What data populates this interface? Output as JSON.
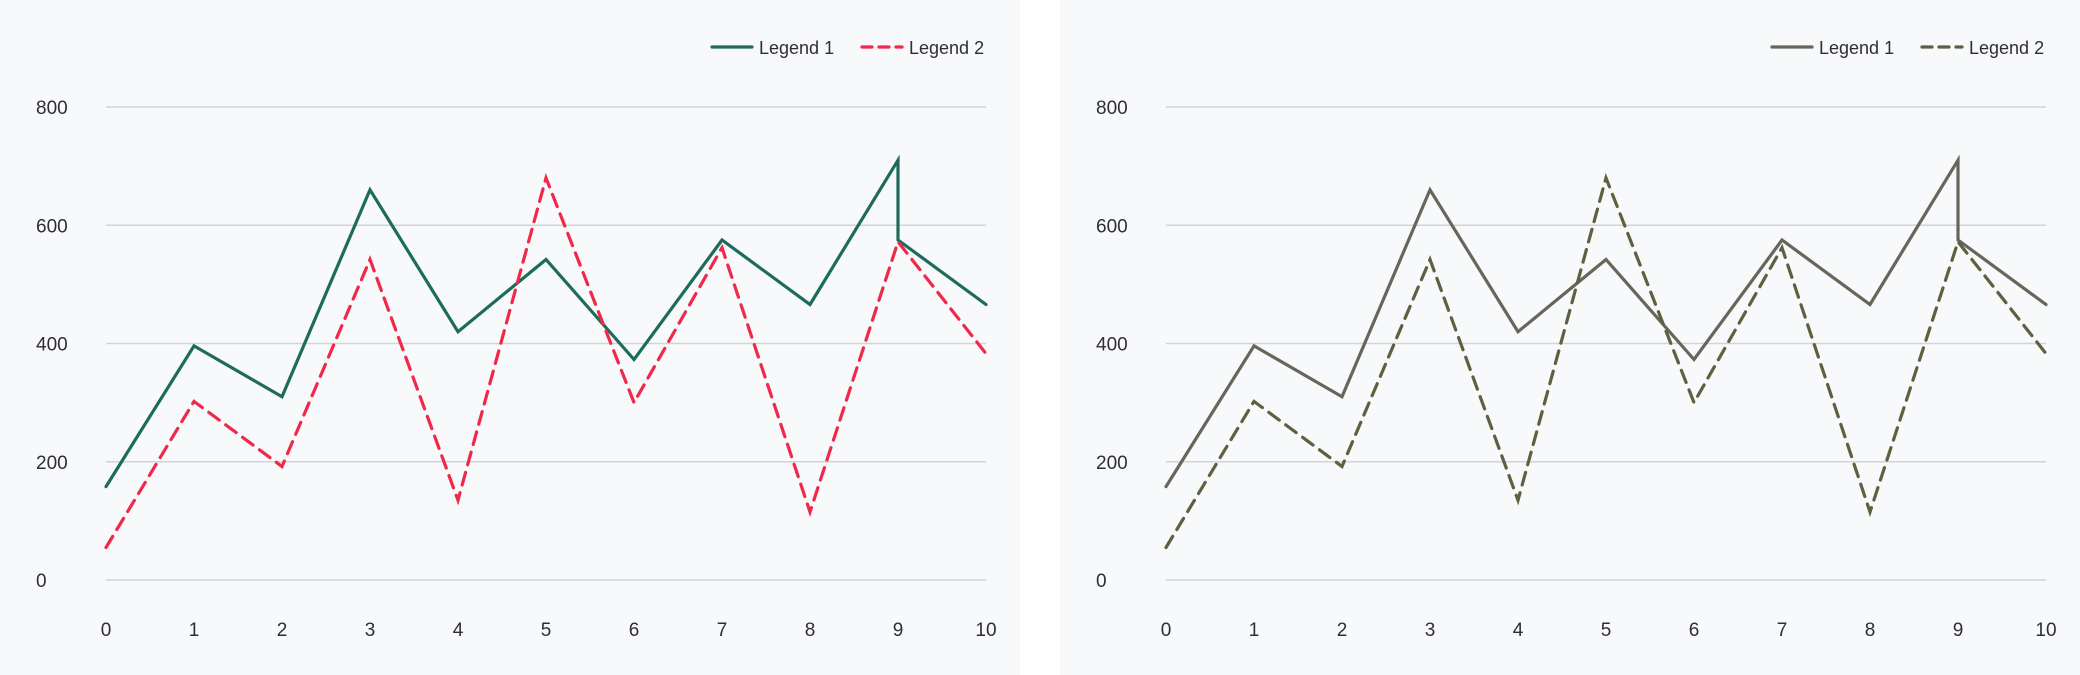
{
  "chart_data": [
    {
      "type": "line",
      "title": "",
      "xlabel": "",
      "ylabel": "",
      "x": [
        0,
        1,
        2,
        3,
        4,
        5,
        6,
        7,
        8,
        9,
        10
      ],
      "xlim": [
        0,
        10
      ],
      "ylim": [
        0,
        800
      ],
      "yticks": [
        0,
        200,
        400,
        600,
        800
      ],
      "grid": "horizontal",
      "legend_position": "top-right",
      "series": [
        {
          "name": "Legend 1",
          "color": "#1d6b5a",
          "style": "solid",
          "points": [
            [
              0,
              158
            ],
            [
              1,
              396
            ],
            [
              2,
              310
            ],
            [
              3,
              660
            ],
            [
              4,
              420
            ],
            [
              5,
              542
            ],
            [
              6,
              373
            ],
            [
              7,
              575
            ],
            [
              8,
              466
            ],
            [
              9,
              710
            ],
            [
              10,
              466
            ]
          ],
          "extra_points": [
            [
              9,
              575
            ]
          ]
        },
        {
          "name": "Legend 2",
          "color": "#f0284a",
          "style": "dashed",
          "points": [
            [
              0,
              55
            ],
            [
              1,
              302
            ],
            [
              2,
              192
            ],
            [
              3,
              542
            ],
            [
              4,
              135
            ],
            [
              5,
              680
            ],
            [
              6,
              300
            ],
            [
              7,
              562
            ],
            [
              8,
              115
            ],
            [
              9,
              572
            ],
            [
              10,
              383
            ]
          ]
        }
      ]
    },
    {
      "type": "line",
      "title": "",
      "xlabel": "",
      "ylabel": "",
      "x": [
        0,
        1,
        2,
        3,
        4,
        5,
        6,
        7,
        8,
        9,
        10
      ],
      "xlim": [
        0,
        10
      ],
      "ylim": [
        0,
        800
      ],
      "yticks": [
        0,
        200,
        400,
        600,
        800
      ],
      "grid": "horizontal",
      "legend_position": "top-right",
      "series": [
        {
          "name": "Legend 1",
          "color": "#66665a",
          "style": "solid",
          "points": [
            [
              0,
              158
            ],
            [
              1,
              396
            ],
            [
              2,
              310
            ],
            [
              3,
              660
            ],
            [
              4,
              420
            ],
            [
              5,
              542
            ],
            [
              6,
              373
            ],
            [
              7,
              575
            ],
            [
              8,
              466
            ],
            [
              9,
              710
            ],
            [
              10,
              466
            ]
          ],
          "extra_points": [
            [
              9,
              575
            ]
          ]
        },
        {
          "name": "Legend 2",
          "color": "#5e6040",
          "style": "dashed",
          "points": [
            [
              0,
              55
            ],
            [
              1,
              302
            ],
            [
              2,
              192
            ],
            [
              3,
              542
            ],
            [
              4,
              135
            ],
            [
              5,
              680
            ],
            [
              6,
              300
            ],
            [
              7,
              562
            ],
            [
              8,
              115
            ],
            [
              9,
              572
            ],
            [
              10,
              383
            ]
          ]
        }
      ]
    }
  ]
}
